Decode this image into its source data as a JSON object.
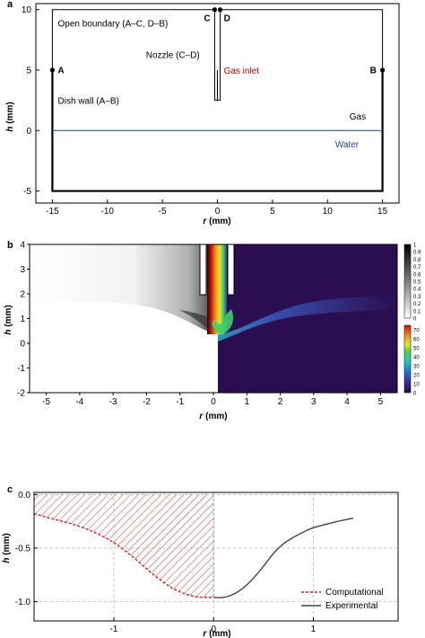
{
  "colors": {
    "water": "#1f3f8f",
    "gas_inlet": "#cc0000",
    "computational": "#cc2222",
    "experimental": "#444444"
  },
  "chart_data": [
    {
      "panel": "a",
      "type": "diagram",
      "xlabel_var": "r",
      "xlabel_unit": "(mm)",
      "ylabel_var": "h",
      "ylabel_unit": "(mm)",
      "xlim": [
        -16.5,
        16.5
      ],
      "ylim": [
        -6,
        10.5
      ],
      "xticks": [
        -15,
        -10,
        -5,
        0,
        5,
        10,
        15
      ],
      "yticks": [
        -5,
        0,
        5,
        10
      ],
      "domain_box": {
        "r": [
          -15,
          15
        ],
        "h": [
          -5,
          10
        ]
      },
      "nozzle": {
        "outer": [
          -0.25,
          0.25
        ],
        "top": 10,
        "bottom": 2.5,
        "inlet_h": 5
      },
      "points": [
        {
          "name": "A",
          "r": -15,
          "h": 5
        },
        {
          "name": "B",
          "r": 15,
          "h": 5
        },
        {
          "name": "C",
          "r": -0.25,
          "h": 10
        },
        {
          "name": "D",
          "r": 0.25,
          "h": 10
        }
      ],
      "labels": {
        "open_boundary": "Open boundary (A–C, D–B)",
        "nozzle": "Nozzle (C–D)",
        "gas_inlet": "Gas inlet",
        "dish_wall": "Dish wall (A–B)",
        "gas": "Gas",
        "water": "Water"
      }
    },
    {
      "panel": "b",
      "type": "heatmap",
      "xlabel_var": "r",
      "xlabel_unit": "(mm)",
      "ylabel_var": "h",
      "ylabel_unit": "(mm)",
      "xlim": [
        -5.5,
        5.5
      ],
      "ylim": [
        -2,
        4
      ],
      "xticks": [
        -5,
        -4,
        -3,
        -2,
        -1,
        0,
        1,
        2,
        3,
        4,
        5
      ],
      "yticks": [
        -2,
        -1,
        0,
        1,
        2,
        3,
        4
      ],
      "colorbar_gray": {
        "range": [
          0,
          1
        ],
        "ticks": [
          "0",
          "0.1",
          "0.2",
          "0.3",
          "0.4",
          "0.5",
          "0.6",
          "0.7",
          "0.8",
          "0.9",
          "1"
        ]
      },
      "colorbar_color": {
        "range": [
          0,
          75
        ],
        "ticks": [
          "0",
          "10",
          "20",
          "30",
          "40",
          "50",
          "60",
          "70"
        ]
      }
    },
    {
      "panel": "c",
      "type": "line",
      "xlabel_var": "r",
      "xlabel_unit": "(mm)",
      "ylabel_var": "h",
      "ylabel_unit": "(mm)",
      "xlim": [
        -1.8,
        1.85
      ],
      "ylim": [
        -1.18,
        0.02
      ],
      "xticks": [
        -1,
        0,
        1
      ],
      "yticks": [
        0.0,
        -0.5,
        -1.0
      ],
      "ytick_labels": [
        "0.0",
        "-0.5",
        "-1.0"
      ],
      "grid": true,
      "legend": "bottom-right",
      "series": [
        {
          "name": "Computational",
          "style": "dashed",
          "x": [
            -1.8,
            -1.6,
            -1.4,
            -1.2,
            -1.0,
            -0.8,
            -0.6,
            -0.4,
            -0.2,
            0.0
          ],
          "y": [
            -0.18,
            -0.23,
            -0.28,
            -0.35,
            -0.45,
            -0.59,
            -0.75,
            -0.88,
            -0.95,
            -0.96
          ]
        },
        {
          "name": "Experimental",
          "style": "solid",
          "x": [
            0.0,
            0.1,
            0.2,
            0.3,
            0.4,
            0.5,
            0.6,
            0.7,
            0.8,
            0.9,
            1.0,
            1.2,
            1.4
          ],
          "y": [
            -0.96,
            -0.96,
            -0.93,
            -0.87,
            -0.78,
            -0.67,
            -0.55,
            -0.46,
            -0.4,
            -0.35,
            -0.31,
            -0.26,
            -0.22
          ]
        }
      ]
    }
  ],
  "panel_letters": [
    "a",
    "b",
    "c"
  ]
}
